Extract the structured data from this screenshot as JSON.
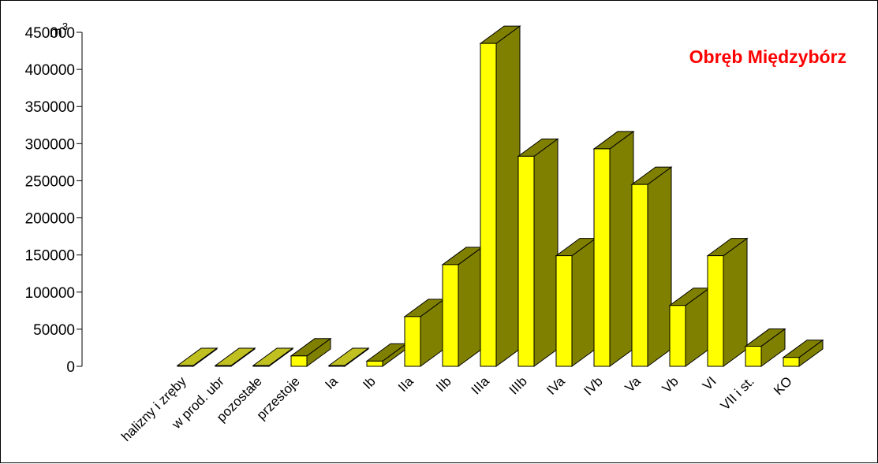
{
  "chart_data": {
    "type": "bar",
    "title": "Obręb Międzybórz",
    "title_color": "#ff0000",
    "ylabel": "m",
    "ylabel_superscript": "3",
    "xlabel": "",
    "ylim": [
      0,
      450000
    ],
    "yticks": [
      0,
      50000,
      100000,
      150000,
      200000,
      250000,
      300000,
      350000,
      400000,
      450000
    ],
    "ytick_labels": [
      "0",
      "50000",
      "100000",
      "150000",
      "200000",
      "250000",
      "300000",
      "350000",
      "400000",
      "450000"
    ],
    "grid": false,
    "legend": false,
    "bar_style": "3d",
    "colors": {
      "front": "#ffff00",
      "side": "#808000",
      "top": "#c0c020"
    },
    "categories": [
      "halizny i zręby",
      "w prod. ubr",
      "pozostałe",
      "przestoje",
      "Ia",
      "Ib",
      "IIa",
      "IIb",
      "IIIa",
      "IIIb",
      "IVa",
      "IVb",
      "Va",
      "Vb",
      "VI",
      "VII i st.",
      "KO"
    ],
    "values": [
      1000,
      1000,
      1000,
      14000,
      1000,
      7000,
      67000,
      137000,
      435000,
      283000,
      149000,
      293000,
      245000,
      82000,
      149000,
      27000,
      12000
    ]
  }
}
